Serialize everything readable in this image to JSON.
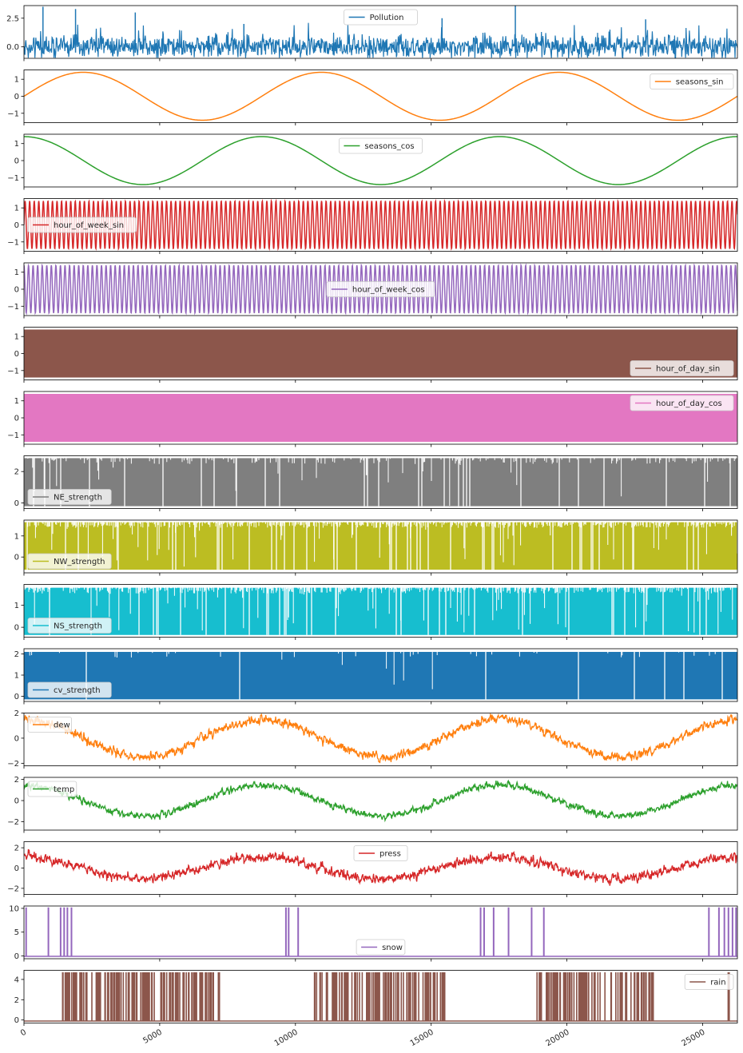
{
  "chart_data": {
    "type": "line",
    "layout": "stacked-subplots-shared-x",
    "x_range": [
      0,
      26280
    ],
    "x_ticks": [
      "0",
      "5000",
      "10000",
      "15000",
      "20000",
      "25000"
    ],
    "x_tick_values": [
      0,
      5000,
      10000,
      15000,
      20000,
      25000
    ],
    "subplots": [
      {
        "name": "Pollution",
        "color": "#1f77b4",
        "ylim": [
          -1.0,
          3.6
        ],
        "yticks": [
          0.0,
          2.5
        ],
        "ytick_labels": [
          "0.0",
          "2.5"
        ],
        "legend": "upper center",
        "pattern": "noisy",
        "base": 0.0,
        "noise": 0.65,
        "spikes": [
          [
            700,
            3.5
          ],
          [
            1900,
            3.3
          ],
          [
            4100,
            3.0
          ],
          [
            8100,
            2.0
          ],
          [
            15400,
            2.5
          ],
          [
            18100,
            3.7
          ],
          [
            22900,
            2.4
          ]
        ]
      },
      {
        "name": "seasons_sin",
        "color": "#ff7f0e",
        "ylim": [
          -1.55,
          1.55
        ],
        "yticks": [
          -1,
          0,
          1
        ],
        "ytick_labels": [
          "−1",
          "0",
          "1"
        ],
        "legend": "upper right",
        "pattern": "sine",
        "amplitude": 1.41,
        "period": 8760,
        "phase": "sin"
      },
      {
        "name": "seasons_cos",
        "color": "#2ca02c",
        "ylim": [
          -1.55,
          1.55
        ],
        "yticks": [
          -1,
          0,
          1
        ],
        "ytick_labels": [
          "−1",
          "0",
          "1"
        ],
        "legend": "upper center",
        "pattern": "sine",
        "amplitude": 1.41,
        "period": 8760,
        "phase": "cos"
      },
      {
        "name": "hour_of_week_sin",
        "color": "#d62728",
        "ylim": [
          -1.55,
          1.55
        ],
        "yticks": [
          -1,
          0,
          1
        ],
        "ytick_labels": [
          "−1",
          "0",
          "1"
        ],
        "legend": "center left",
        "pattern": "fast-sine",
        "amplitude": 1.41,
        "period": 168,
        "phase": "sin"
      },
      {
        "name": "hour_of_week_cos",
        "color": "#9467bd",
        "ylim": [
          -1.55,
          1.55
        ],
        "yticks": [
          -1,
          0,
          1
        ],
        "ytick_labels": [
          "−1",
          "0",
          "1"
        ],
        "legend": "center",
        "pattern": "fast-sine",
        "amplitude": 1.41,
        "period": 168,
        "phase": "cos"
      },
      {
        "name": "hour_of_day_sin",
        "color": "#8c564b",
        "ylim": [
          -1.55,
          1.55
        ],
        "yticks": [
          -1,
          0,
          1
        ],
        "ytick_labels": [
          "−1",
          "0",
          "1"
        ],
        "legend": "lower right",
        "pattern": "band",
        "low": -1.41,
        "high": 1.41
      },
      {
        "name": "hour_of_day_cos",
        "color": "#e377c2",
        "ylim": [
          -1.55,
          1.55
        ],
        "yticks": [
          -1,
          0,
          1
        ],
        "ytick_labels": [
          "−1",
          "0",
          "1"
        ],
        "legend": "upper right",
        "pattern": "band",
        "low": -1.41,
        "high": 1.41
      },
      {
        "name": "NE_strength",
        "color": "#7f7f7f",
        "ylim": [
          -0.35,
          3.0
        ],
        "yticks": [
          0,
          2
        ],
        "ytick_labels": [
          "0",
          "2"
        ],
        "legend": "lower left",
        "pattern": "barcode",
        "low": -0.2,
        "high": 2.85,
        "gaps": 0.06,
        "ragged": 0.25
      },
      {
        "name": "NW_strength",
        "color": "#bcbd22",
        "ylim": [
          -0.75,
          1.75
        ],
        "yticks": [
          0,
          1
        ],
        "ytick_labels": [
          "0",
          "1"
        ],
        "legend": "lower left",
        "pattern": "barcode",
        "low": -0.6,
        "high": 1.65,
        "gaps": 0.1,
        "ragged": 0.6
      },
      {
        "name": "NS_strength",
        "color": "#17becf",
        "ylim": [
          -0.45,
          1.95
        ],
        "yticks": [
          0,
          1
        ],
        "ytick_labels": [
          "0",
          "1"
        ],
        "legend": "lower left",
        "pattern": "barcode",
        "low": -0.35,
        "high": 1.8,
        "gaps": 0.08,
        "ragged": 0.55
      },
      {
        "name": "cv_strength",
        "color": "#1f77b4",
        "ylim": [
          -0.25,
          2.25
        ],
        "yticks": [
          0,
          1,
          2
        ],
        "ytick_labels": [
          "0",
          "1",
          "2"
        ],
        "legend": "lower left",
        "pattern": "barcode",
        "low": -0.15,
        "high": 2.1,
        "gaps": 0.03,
        "ragged": 0.05
      },
      {
        "name": "dew",
        "color": "#ff7f0e",
        "ylim": [
          -2.2,
          2.0
        ],
        "yticks": [
          -2,
          0,
          2
        ],
        "ytick_labels": [
          "−2",
          "0",
          "2"
        ],
        "legend": "upper left",
        "pattern": "seasonal-noisy",
        "amplitude": 1.5,
        "noise": 0.45
      },
      {
        "name": "temp",
        "color": "#2ca02c",
        "ylim": [
          -2.8,
          2.2
        ],
        "yticks": [
          -2,
          0,
          2
        ],
        "ytick_labels": [
          "−2",
          "0",
          "2"
        ],
        "legend": "upper left",
        "pattern": "seasonal-noisy",
        "amplitude": 1.45,
        "noise": 0.4
      },
      {
        "name": "press",
        "color": "#d62728",
        "ylim": [
          -2.6,
          2.6
        ],
        "yticks": [
          -2,
          0,
          2
        ],
        "ytick_labels": [
          "−2",
          "0",
          "2"
        ],
        "legend": "upper center",
        "pattern": "seasonal-noisy-inverse",
        "amplitude": 1.2,
        "noise": 0.6
      },
      {
        "name": "snow",
        "color": "#9467bd",
        "ylim": [
          -0.6,
          10.5
        ],
        "yticks": [
          0,
          5,
          10
        ],
        "ytick_labels": [
          "0",
          "5",
          "10"
        ],
        "legend": "lower center",
        "pattern": "rare-spikes",
        "low": -0.1,
        "high": 10.2,
        "spike_x": [
          80,
          900,
          1350,
          1480,
          1600,
          1750,
          9650,
          9750,
          10100,
          16820,
          16950,
          17300,
          17850,
          18700,
          19150,
          25230,
          25600,
          25800,
          25950,
          26100,
          26230
        ]
      },
      {
        "name": "rain",
        "color": "#8c564b",
        "ylim": [
          -0.3,
          4.9
        ],
        "yticks": [
          0,
          2,
          4
        ],
        "ytick_labels": [
          "0",
          "2",
          "4"
        ],
        "legend": "upper right",
        "pattern": "spike-clusters",
        "low": -0.1,
        "high": 4.7,
        "clusters": [
          [
            1400,
            7200
          ],
          [
            10700,
            15600
          ],
          [
            18900,
            23200
          ],
          [
            25900,
            26000
          ]
        ]
      }
    ]
  }
}
